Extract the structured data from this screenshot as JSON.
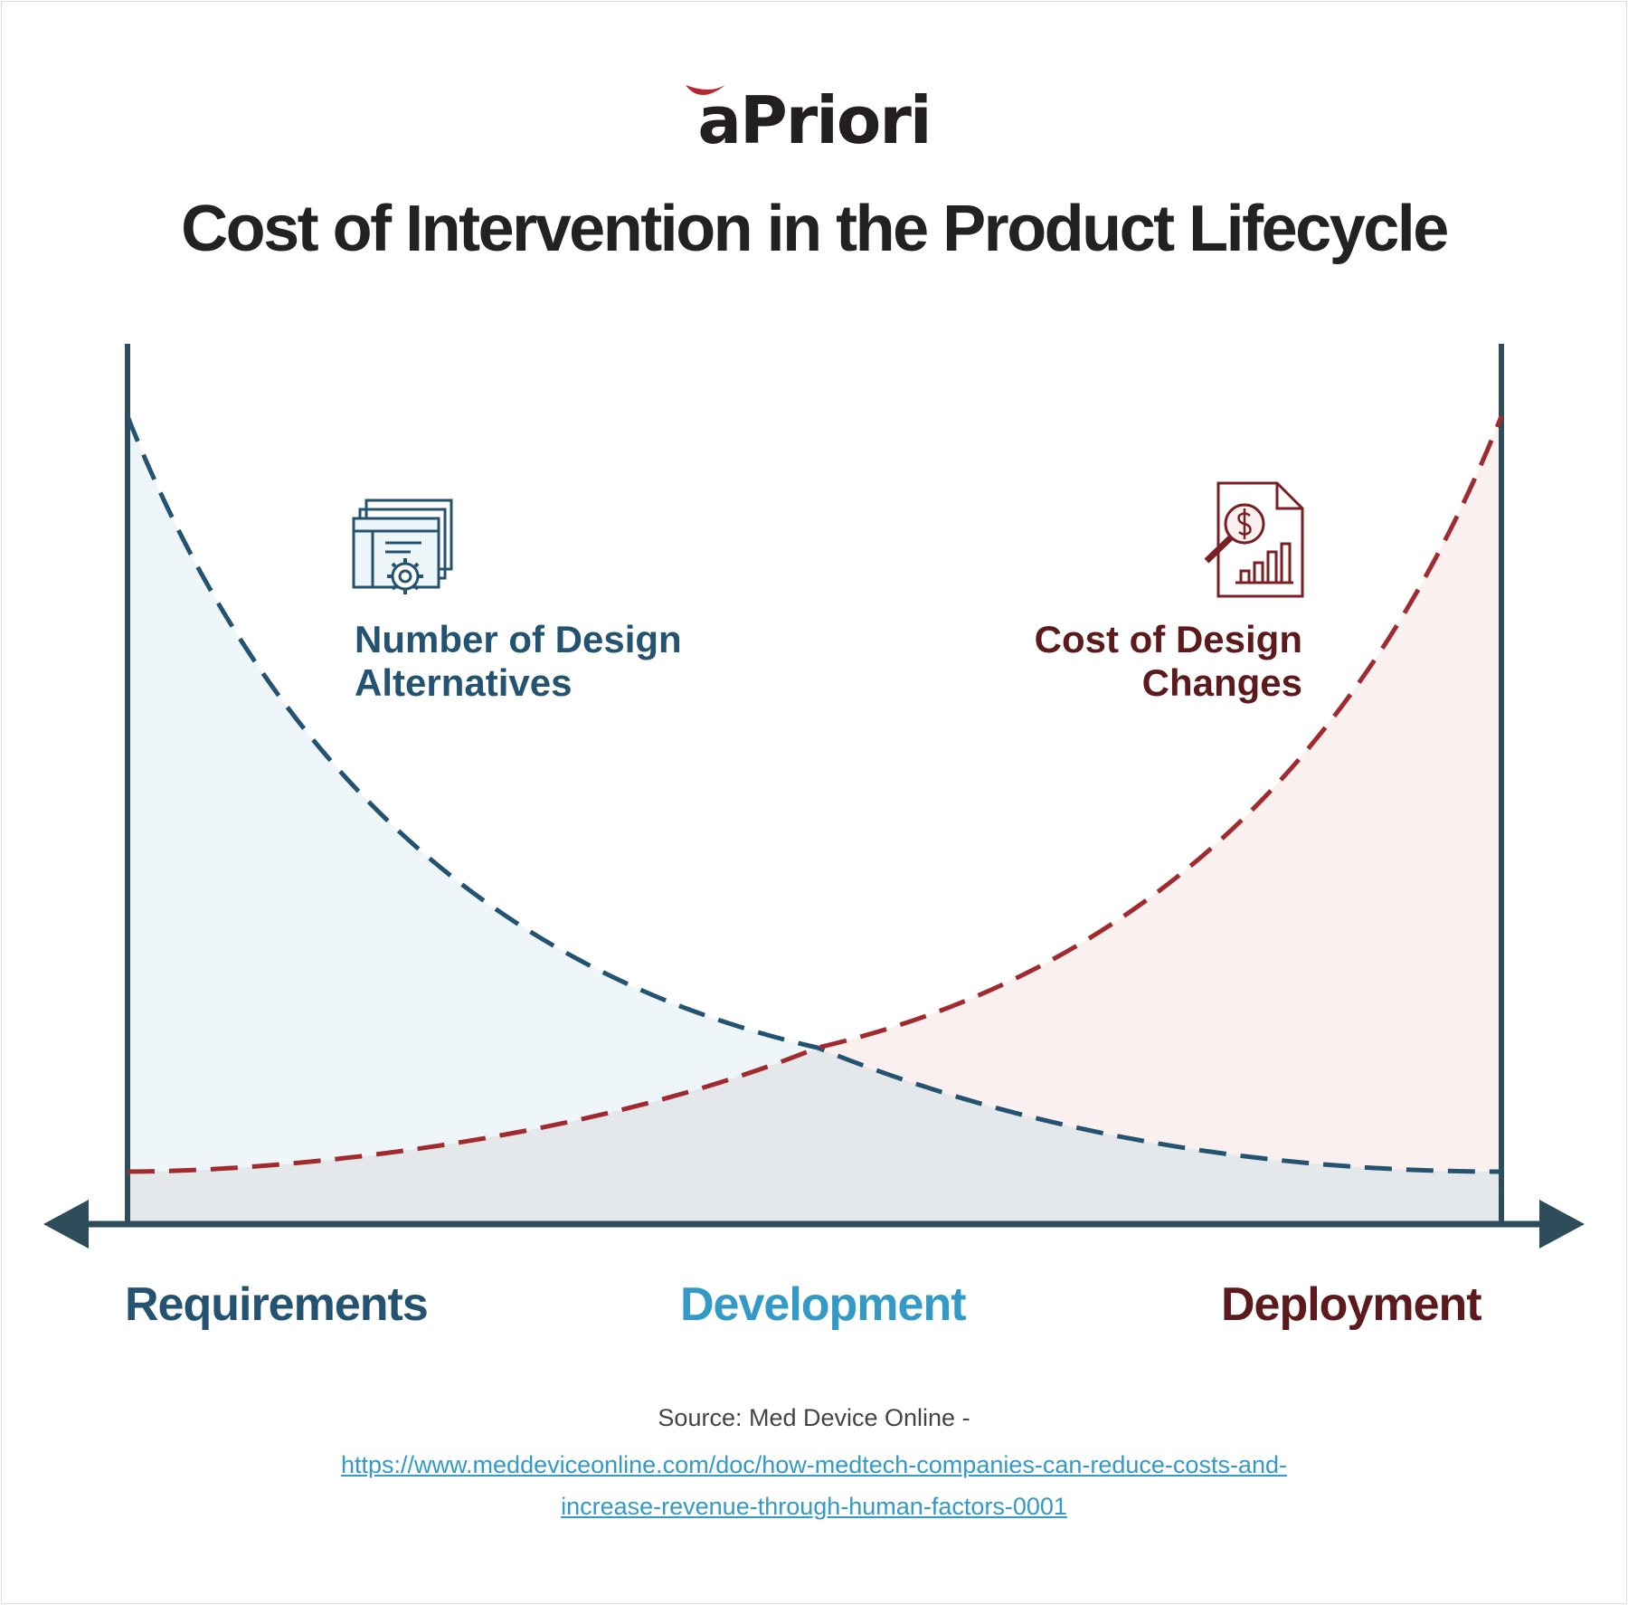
{
  "brand": {
    "logo_text": "aPriori",
    "logo_color": "#231f20",
    "mark_color": "#b3282d"
  },
  "title": "Cost of Intervention in the Product Lifecycle",
  "curves": {
    "design_alternatives": {
      "label_line1": "Number of Design",
      "label_line2": "Alternatives",
      "icon": "window-gear-icon",
      "color": "#245271",
      "fill": "#eef6fa"
    },
    "design_change_cost": {
      "label_line1": "Cost of Design",
      "label_line2": "Changes",
      "icon": "cost-report-icon",
      "color": "#a12a2e",
      "fill": "#fbf0f0"
    },
    "overlap_fill": "#e4e8ea"
  },
  "stages": {
    "requirements": {
      "label": "Requirements",
      "color": "#245271"
    },
    "development": {
      "label": "Development",
      "color": "#3399c6"
    },
    "deployment": {
      "label": "Deployment",
      "color": "#5c1a1c"
    }
  },
  "axis_color": "#2e4d5a",
  "source": {
    "label": "Source: Med Device Online -",
    "link_line1": "https://www.meddeviceonline.com/doc/how-medtech-companies-can-reduce-costs-and-",
    "link_line2": "increase-revenue-through-human-factors-0001"
  }
}
